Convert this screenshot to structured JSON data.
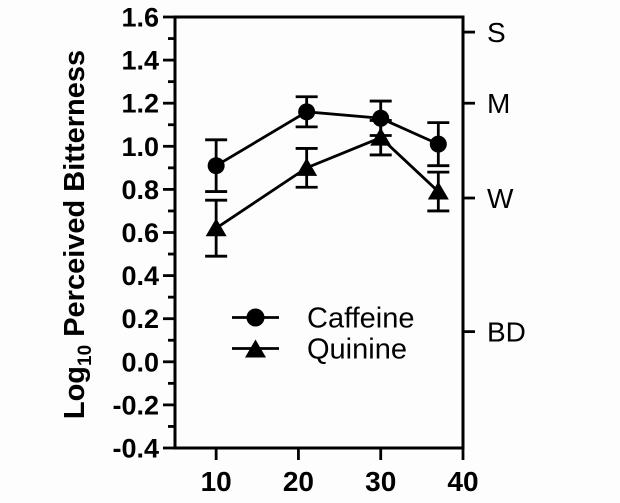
{
  "figure": {
    "background": "#fdfdfd",
    "ink": "#000000"
  },
  "chart_data": {
    "type": "line",
    "title": "",
    "xlabel": "",
    "ylabel": "Log10 Perceived Bitterness",
    "ylabel_parts": {
      "prefix": "Log",
      "subscript": "10",
      "rest": " Perceived Bitterness"
    },
    "xlim": [
      5,
      40
    ],
    "ylim": [
      -0.4,
      1.6
    ],
    "grid": false,
    "x_ticks": [
      {
        "value": 10,
        "label": "10"
      },
      {
        "value": 20,
        "label": "20"
      },
      {
        "value": 30,
        "label": "30"
      },
      {
        "value": 40,
        "label": "40"
      }
    ],
    "y_ticks": [
      {
        "value": 1.6,
        "label": "1.6"
      },
      {
        "value": 1.4,
        "label": "1.4"
      },
      {
        "value": 1.2,
        "label": "1.2"
      },
      {
        "value": 1.0,
        "label": "1.0"
      },
      {
        "value": 0.8,
        "label": "0.8"
      },
      {
        "value": 0.6,
        "label": "0.6"
      },
      {
        "value": 0.4,
        "label": "0.4"
      },
      {
        "value": 0.2,
        "label": "0.2"
      },
      {
        "value": 0.0,
        "label": "0.0"
      },
      {
        "value": -0.2,
        "label": "-0.2"
      },
      {
        "value": -0.4,
        "label": "-0.4"
      }
    ],
    "y_minor_ticks": [
      1.5,
      1.3,
      1.1,
      0.9,
      0.7,
      0.5,
      0.3,
      0.1,
      -0.1,
      -0.3
    ],
    "x": [
      10,
      21,
      30,
      37
    ],
    "series": [
      {
        "name": "Caffeine",
        "marker": "circle",
        "values": [
          0.91,
          1.16,
          1.13,
          1.01
        ],
        "errors": [
          0.12,
          0.07,
          0.08,
          0.1
        ]
      },
      {
        "name": "Quinine",
        "marker": "triangle",
        "values": [
          0.62,
          0.9,
          1.04,
          0.79
        ],
        "errors": [
          0.13,
          0.09,
          0.08,
          0.09
        ]
      }
    ],
    "right_axis_labels": [
      {
        "label": "S",
        "value": 1.53
      },
      {
        "label": "M",
        "value": 1.2
      },
      {
        "label": "W",
        "value": 0.76
      },
      {
        "label": "BD",
        "value": 0.14
      }
    ],
    "legend": {
      "entries": [
        "Caffeine",
        "Quinine"
      ],
      "position": "inside-lower-center"
    }
  }
}
